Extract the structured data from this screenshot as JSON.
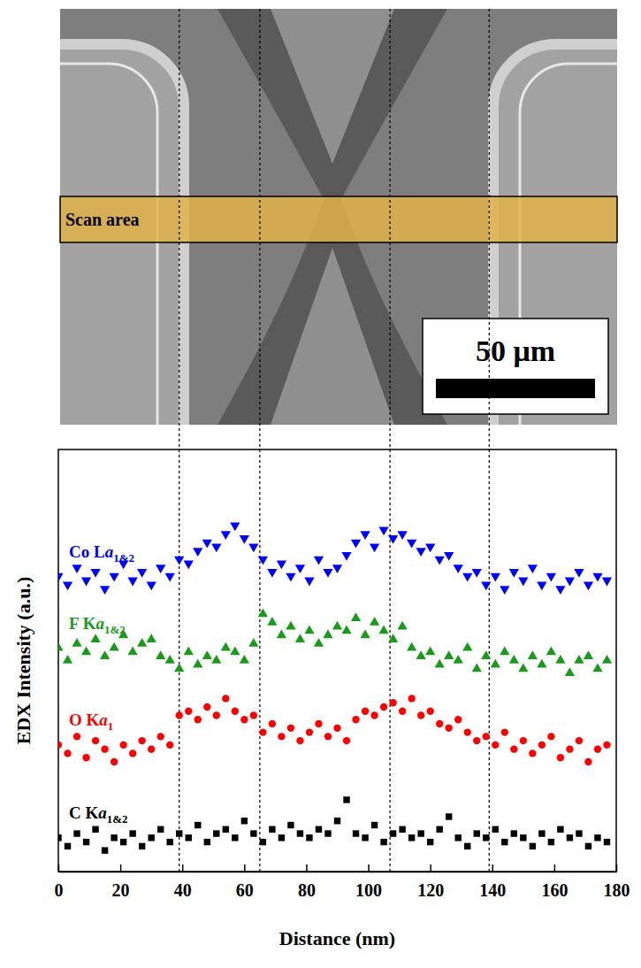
{
  "chart_data": {
    "type": "scatter",
    "xlabel": "Distance (nm)",
    "ylabel": "EDX Intensity (a.u.)",
    "xlim": [
      0,
      180
    ],
    "xticks": [
      0,
      20,
      40,
      60,
      80,
      100,
      120,
      140,
      160,
      180
    ],
    "ylim": [
      0,
      100
    ],
    "tick_labels": "x",
    "vlines": [
      39,
      65,
      107,
      139
    ],
    "x": [
      0,
      3,
      6,
      9,
      12,
      15,
      18,
      21,
      24,
      27,
      30,
      33,
      36,
      39,
      42,
      45,
      48,
      51,
      54,
      57,
      60,
      63,
      66,
      69,
      72,
      75,
      78,
      81,
      84,
      87,
      90,
      93,
      96,
      99,
      102,
      105,
      108,
      111,
      114,
      117,
      120,
      123,
      126,
      129,
      132,
      135,
      138,
      141,
      144,
      147,
      150,
      153,
      156,
      159,
      162,
      165,
      168,
      171,
      174,
      177
    ],
    "series": [
      {
        "name": "Co La1&2",
        "color": "#0000ff",
        "marker": "triangle-down",
        "values": [
          70,
          68,
          72,
          69,
          71,
          67,
          70,
          73,
          69,
          71,
          68,
          72,
          70,
          74,
          73,
          76,
          78,
          77,
          80,
          82,
          79,
          77,
          74,
          71,
          73,
          70,
          72,
          69,
          74,
          71,
          72,
          75,
          78,
          80,
          77,
          81,
          79,
          80,
          78,
          76,
          77,
          74,
          75,
          72,
          70,
          71,
          68,
          70,
          67,
          71,
          69,
          72,
          68,
          70,
          67,
          69,
          71,
          68,
          70,
          69
        ]
      },
      {
        "name": "F Ka1&2",
        "color": "#1a9a1a",
        "marker": "triangle-up",
        "values": [
          53,
          50,
          54,
          52,
          55,
          51,
          53,
          56,
          52,
          54,
          55,
          51,
          50,
          48,
          52,
          49,
          51,
          50,
          53,
          52,
          50,
          54,
          61,
          59,
          56,
          58,
          55,
          57,
          54,
          56,
          58,
          57,
          60,
          56,
          59,
          57,
          55,
          58,
          53,
          51,
          52,
          49,
          51,
          50,
          53,
          48,
          51,
          49,
          52,
          50,
          48,
          51,
          49,
          52,
          50,
          47,
          50,
          51,
          48,
          50
        ]
      },
      {
        "name": "O Ka1",
        "color": "#ff0000",
        "marker": "circle",
        "values": [
          30,
          28,
          32,
          27,
          31,
          29,
          26,
          30,
          28,
          31,
          29,
          32,
          30,
          37,
          38,
          36,
          39,
          37,
          41,
          38,
          36,
          37,
          33,
          35,
          32,
          34,
          31,
          33,
          35,
          32,
          34,
          31,
          36,
          38,
          37,
          39,
          40,
          38,
          41,
          37,
          38,
          35,
          34,
          36,
          33,
          31,
          32,
          30,
          33,
          29,
          31,
          28,
          30,
          32,
          27,
          29,
          31,
          26,
          29,
          30
        ]
      },
      {
        "name": "C Ka1&2",
        "color": "#000000",
        "marker": "square",
        "values": [
          8,
          6,
          9,
          7,
          10,
          5,
          8,
          7,
          9,
          6,
          8,
          10,
          7,
          9,
          8,
          11,
          7,
          9,
          10,
          8,
          12,
          9,
          7,
          10,
          8,
          11,
          9,
          8,
          10,
          9,
          12,
          17,
          9,
          8,
          11,
          7,
          9,
          10,
          8,
          9,
          7,
          10,
          13,
          8,
          6,
          9,
          8,
          10,
          7,
          9,
          8,
          6,
          9,
          7,
          10,
          8,
          9,
          6,
          8,
          7
        ]
      }
    ]
  },
  "image": {
    "scan_label": "Scan area",
    "scale_bar": "50 μm"
  }
}
